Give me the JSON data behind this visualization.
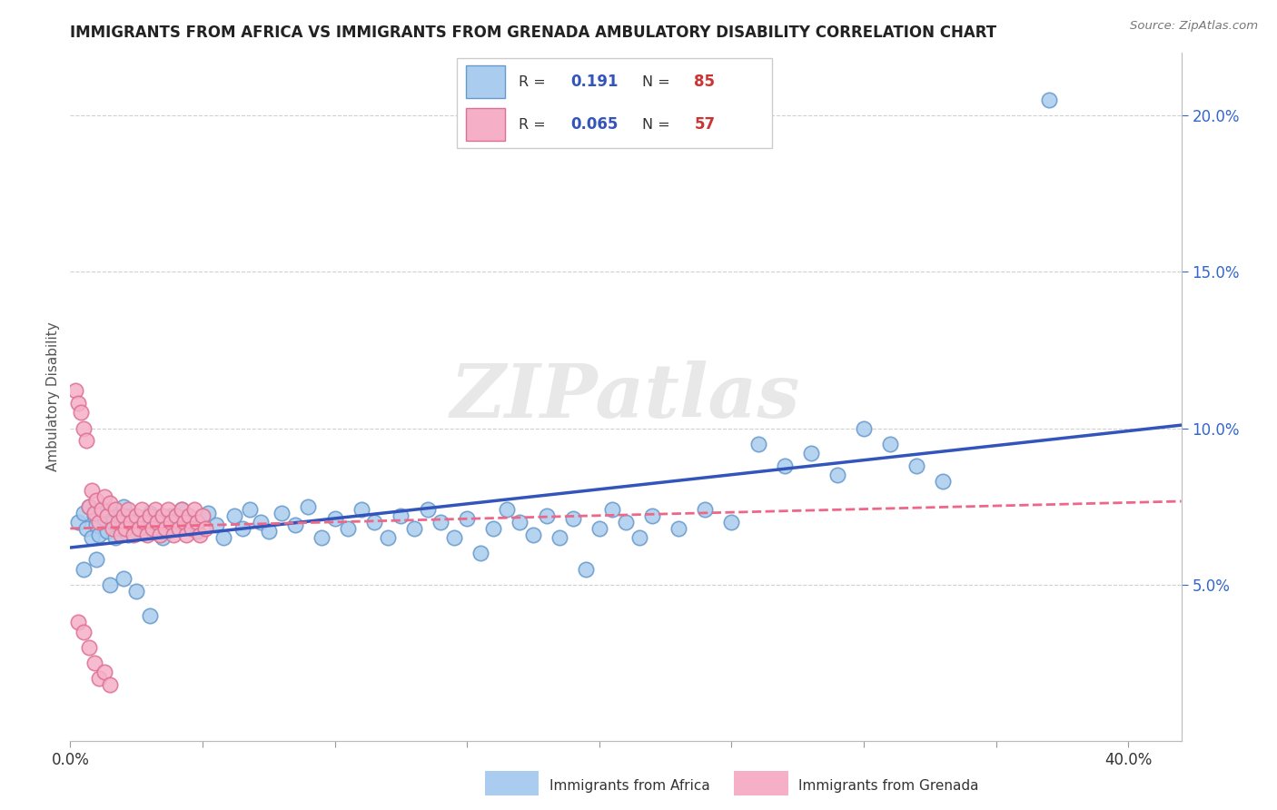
{
  "title": "IMMIGRANTS FROM AFRICA VS IMMIGRANTS FROM GRENADA AMBULATORY DISABILITY CORRELATION CHART",
  "source": "Source: ZipAtlas.com",
  "ylabel": "Ambulatory Disability",
  "xlim": [
    0.0,
    0.42
  ],
  "ylim": [
    0.0,
    0.22
  ],
  "xticks": [
    0.0,
    0.05,
    0.1,
    0.15,
    0.2,
    0.25,
    0.3,
    0.35,
    0.4
  ],
  "xtick_labels": [
    "0.0%",
    "",
    "",
    "",
    "",
    "",
    "",
    "",
    "40.0%"
  ],
  "yticks_right": [
    0.05,
    0.1,
    0.15,
    0.2
  ],
  "ytick_labels_right": [
    "5.0%",
    "10.0%",
    "15.0%",
    "20.0%"
  ],
  "africa_color": "#aaccee",
  "africa_edge": "#6699cc",
  "grenada_color": "#f5b0c8",
  "grenada_edge": "#dd7090",
  "africa_line_color": "#3355bb",
  "grenada_line_color": "#ee6688",
  "R_africa": 0.191,
  "N_africa": 85,
  "R_grenada": 0.065,
  "N_grenada": 57,
  "legend_R_color": "#3355bb",
  "legend_N_color": "#cc3333",
  "watermark": "ZIPatlas",
  "africa_x": [
    0.003,
    0.005,
    0.006,
    0.007,
    0.008,
    0.009,
    0.01,
    0.011,
    0.012,
    0.013,
    0.014,
    0.015,
    0.016,
    0.017,
    0.018,
    0.019,
    0.02,
    0.021,
    0.022,
    0.023,
    0.025,
    0.027,
    0.03,
    0.032,
    0.035,
    0.038,
    0.04,
    0.042,
    0.045,
    0.048,
    0.052,
    0.055,
    0.058,
    0.062,
    0.065,
    0.068,
    0.072,
    0.075,
    0.08,
    0.085,
    0.09,
    0.095,
    0.1,
    0.105,
    0.11,
    0.115,
    0.12,
    0.125,
    0.13,
    0.135,
    0.14,
    0.145,
    0.15,
    0.155,
    0.16,
    0.165,
    0.17,
    0.175,
    0.18,
    0.185,
    0.19,
    0.195,
    0.2,
    0.205,
    0.21,
    0.215,
    0.22,
    0.23,
    0.24,
    0.25,
    0.26,
    0.27,
    0.28,
    0.29,
    0.3,
    0.31,
    0.32,
    0.33,
    0.37,
    0.005,
    0.01,
    0.015,
    0.02,
    0.025,
    0.03
  ],
  "africa_y": [
    0.07,
    0.073,
    0.068,
    0.075,
    0.065,
    0.072,
    0.069,
    0.066,
    0.074,
    0.071,
    0.067,
    0.073,
    0.07,
    0.065,
    0.072,
    0.068,
    0.075,
    0.069,
    0.066,
    0.072,
    0.07,
    0.067,
    0.073,
    0.069,
    0.065,
    0.072,
    0.068,
    0.074,
    0.071,
    0.067,
    0.073,
    0.069,
    0.065,
    0.072,
    0.068,
    0.074,
    0.07,
    0.067,
    0.073,
    0.069,
    0.075,
    0.065,
    0.071,
    0.068,
    0.074,
    0.07,
    0.065,
    0.072,
    0.068,
    0.074,
    0.07,
    0.065,
    0.071,
    0.06,
    0.068,
    0.074,
    0.07,
    0.066,
    0.072,
    0.065,
    0.071,
    0.055,
    0.068,
    0.074,
    0.07,
    0.065,
    0.072,
    0.068,
    0.074,
    0.07,
    0.095,
    0.088,
    0.092,
    0.085,
    0.1,
    0.095,
    0.088,
    0.083,
    0.205,
    0.055,
    0.058,
    0.05,
    0.052,
    0.048,
    0.04
  ],
  "grenada_x": [
    0.002,
    0.003,
    0.004,
    0.005,
    0.006,
    0.007,
    0.008,
    0.009,
    0.01,
    0.011,
    0.012,
    0.013,
    0.014,
    0.015,
    0.016,
    0.017,
    0.018,
    0.019,
    0.02,
    0.021,
    0.022,
    0.023,
    0.024,
    0.025,
    0.026,
    0.027,
    0.028,
    0.029,
    0.03,
    0.031,
    0.032,
    0.033,
    0.034,
    0.035,
    0.036,
    0.037,
    0.038,
    0.039,
    0.04,
    0.041,
    0.042,
    0.043,
    0.044,
    0.045,
    0.046,
    0.047,
    0.048,
    0.049,
    0.05,
    0.051,
    0.003,
    0.005,
    0.007,
    0.009,
    0.011,
    0.013,
    0.015
  ],
  "grenada_y": [
    0.112,
    0.108,
    0.105,
    0.1,
    0.096,
    0.075,
    0.08,
    0.073,
    0.077,
    0.07,
    0.074,
    0.078,
    0.072,
    0.076,
    0.068,
    0.074,
    0.07,
    0.066,
    0.072,
    0.068,
    0.074,
    0.07,
    0.066,
    0.072,
    0.068,
    0.074,
    0.07,
    0.066,
    0.072,
    0.068,
    0.074,
    0.07,
    0.066,
    0.072,
    0.068,
    0.074,
    0.07,
    0.066,
    0.072,
    0.068,
    0.074,
    0.07,
    0.066,
    0.072,
    0.068,
    0.074,
    0.07,
    0.066,
    0.072,
    0.068,
    0.038,
    0.035,
    0.03,
    0.025,
    0.02,
    0.022,
    0.018
  ]
}
